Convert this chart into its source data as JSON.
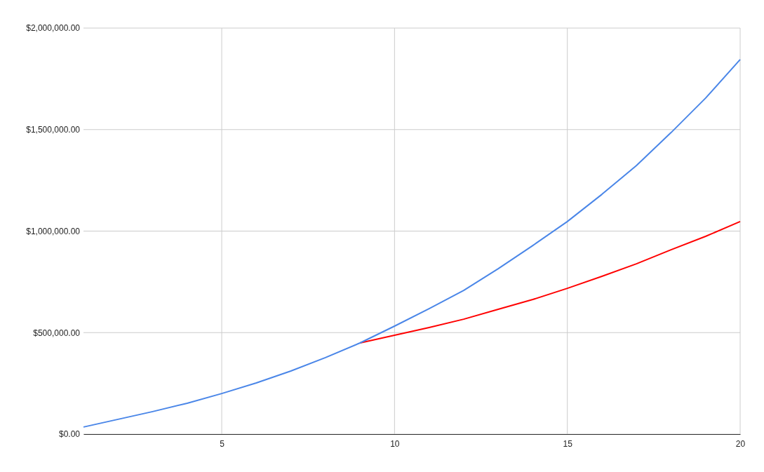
{
  "chart_data": {
    "type": "line",
    "x": [
      1,
      2,
      3,
      4,
      5,
      6,
      7,
      8,
      9,
      10,
      11,
      12,
      13,
      14,
      15,
      16,
      17,
      18,
      19,
      20
    ],
    "series": [
      {
        "color": "#ff0000",
        "values": [
          null,
          null,
          null,
          null,
          null,
          null,
          null,
          null,
          449000,
          487000,
          525000,
          566000,
          615000,
          663000,
          718000,
          777000,
          839000,
          908000,
          974000,
          1047000
        ]
      },
      {
        "color": "#4a86e8",
        "values": [
          35000,
          73000,
          111000,
          152000,
          200000,
          252000,
          311000,
          377000,
          449000,
          532000,
          618000,
          708000,
          815000,
          929000,
          1047000,
          1181000,
          1323000,
          1485000,
          1655000,
          1845000
        ]
      }
    ],
    "xlim": [
      1,
      20
    ],
    "xticks": [
      5,
      10,
      15,
      20
    ],
    "ylim": [
      0,
      2000000
    ],
    "yticks": [
      {
        "value": 0,
        "label": "$0.00"
      },
      {
        "value": 500000,
        "label": "$500,000.00"
      },
      {
        "value": 1000000,
        "label": "$1,000,000.00"
      },
      {
        "value": 1500000,
        "label": "$1,500,000.00"
      },
      {
        "value": 2000000,
        "label": "$2,000,000.00"
      }
    ],
    "grid": true,
    "marker": "none",
    "line_style": "solid"
  }
}
